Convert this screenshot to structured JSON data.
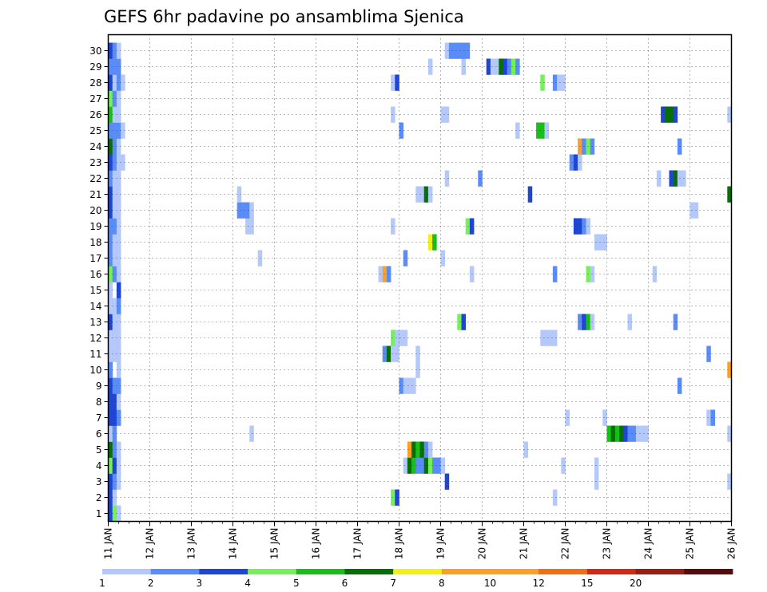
{
  "chart_data": {
    "type": "heatmap",
    "title": "GEFS 6hr padavine po ansamblima Sjenica",
    "x_labels": [
      "11 JAN",
      "12 JAN",
      "13 JAN",
      "14 JAN",
      "15 JAN",
      "16 JAN",
      "17 JAN",
      "18 JAN",
      "19 JAN",
      "20 JAN",
      "21 JAN",
      "22 JAN",
      "23 JAN",
      "24 JAN",
      "25 JAN",
      "26 JAN"
    ],
    "y_labels": [
      "1",
      "2",
      "3",
      "4",
      "5",
      "6",
      "7",
      "8",
      "9",
      "10",
      "11",
      "12",
      "13",
      "14",
      "15",
      "16",
      "17",
      "18",
      "19",
      "20",
      "21",
      "22",
      "23",
      "24",
      "25",
      "26",
      "27",
      "28",
      "29",
      "30"
    ],
    "x_range_days": [
      0,
      15
    ],
    "step_hours": 6,
    "grid": true,
    "legend_position": "bottom",
    "colorbar": {
      "labels": [
        "1",
        "2",
        "3",
        "4",
        "5",
        "6",
        "7",
        "8",
        "10",
        "12",
        "15",
        "20"
      ],
      "colors": [
        "#b4c8fa",
        "#5a8cf5",
        "#1e46d2",
        "#73f05a",
        "#19be19",
        "#086e08",
        "#f0f014",
        "#faa028",
        "#faa028",
        "#f06e14",
        "#d22814",
        "#961e14",
        "#5a0a0a"
      ]
    },
    "member_classes": {
      "1": [
        [
          0,
          3
        ],
        [
          1,
          4
        ],
        [
          2,
          1
        ]
      ],
      "2": [
        [
          0,
          3
        ],
        [
          1,
          1
        ],
        [
          68,
          4
        ],
        [
          69,
          3
        ],
        [
          107,
          1
        ]
      ],
      "3": [
        [
          0,
          3
        ],
        [
          1,
          2
        ],
        [
          2,
          1
        ],
        [
          81,
          3
        ],
        [
          117,
          1
        ],
        [
          149,
          1
        ]
      ],
      "4": [
        [
          0,
          4
        ],
        [
          1,
          3
        ],
        [
          2,
          1
        ],
        [
          71,
          1
        ],
        [
          72,
          6
        ],
        [
          73,
          5
        ],
        [
          74,
          2
        ],
        [
          75,
          2
        ],
        [
          76,
          6
        ],
        [
          77,
          4
        ],
        [
          78,
          2
        ],
        [
          79,
          2
        ],
        [
          80,
          1
        ],
        [
          109,
          1
        ],
        [
          117,
          1
        ]
      ],
      "5": [
        [
          0,
          6
        ],
        [
          1,
          2
        ],
        [
          2,
          1
        ],
        [
          72,
          8
        ],
        [
          73,
          6
        ],
        [
          74,
          5
        ],
        [
          75,
          6
        ],
        [
          76,
          2
        ],
        [
          77,
          1
        ],
        [
          100,
          1
        ]
      ],
      "6": [
        [
          0,
          1
        ],
        [
          1,
          2
        ],
        [
          34,
          1
        ],
        [
          120,
          5
        ],
        [
          121,
          6
        ],
        [
          122,
          5
        ],
        [
          123,
          6
        ],
        [
          124,
          3
        ],
        [
          125,
          2
        ],
        [
          126,
          2
        ],
        [
          127,
          1
        ],
        [
          128,
          1
        ],
        [
          129,
          1
        ],
        [
          149,
          1
        ]
      ],
      "7": [
        [
          0,
          3
        ],
        [
          1,
          3
        ],
        [
          2,
          2
        ],
        [
          110,
          1
        ],
        [
          119,
          1
        ],
        [
          144,
          1
        ],
        [
          145,
          2
        ]
      ],
      "8": [
        [
          0,
          3
        ],
        [
          1,
          3
        ],
        [
          2,
          1
        ]
      ],
      "9": [
        [
          0,
          3
        ],
        [
          1,
          2
        ],
        [
          2,
          2
        ],
        [
          70,
          2
        ],
        [
          71,
          1
        ],
        [
          72,
          1
        ],
        [
          73,
          1
        ],
        [
          137,
          2
        ]
      ],
      "10": [
        [
          0,
          2
        ],
        [
          2,
          1
        ],
        [
          74,
          1
        ],
        [
          149,
          8
        ]
      ],
      "11": [
        [
          0,
          1
        ],
        [
          1,
          1
        ],
        [
          2,
          1
        ],
        [
          66,
          2
        ],
        [
          67,
          6
        ],
        [
          68,
          1
        ],
        [
          69,
          1
        ],
        [
          74,
          1
        ],
        [
          144,
          2
        ]
      ],
      "12": [
        [
          0,
          1
        ],
        [
          1,
          1
        ],
        [
          2,
          1
        ],
        [
          68,
          4
        ],
        [
          69,
          1
        ],
        [
          70,
          1
        ],
        [
          71,
          1
        ],
        [
          104,
          1
        ],
        [
          105,
          1
        ],
        [
          106,
          1
        ],
        [
          107,
          1
        ]
      ],
      "13": [
        [
          0,
          3
        ],
        [
          1,
          1
        ],
        [
          2,
          1
        ],
        [
          84,
          4
        ],
        [
          85,
          3
        ],
        [
          113,
          2
        ],
        [
          114,
          3
        ],
        [
          115,
          5
        ],
        [
          116,
          1
        ],
        [
          125,
          1
        ],
        [
          136,
          2
        ]
      ],
      "14": [
        [
          0,
          1
        ],
        [
          1,
          1
        ],
        [
          2,
          2
        ]
      ],
      "15": [
        [
          0,
          1
        ],
        [
          2,
          3
        ]
      ],
      "16": [
        [
          0,
          4
        ],
        [
          1,
          2
        ],
        [
          2,
          1
        ],
        [
          65,
          1
        ],
        [
          66,
          8
        ],
        [
          67,
          2
        ],
        [
          87,
          1
        ],
        [
          107,
          2
        ],
        [
          115,
          4
        ],
        [
          116,
          1
        ],
        [
          131,
          1
        ]
      ],
      "17": [
        [
          0,
          2
        ],
        [
          1,
          1
        ],
        [
          2,
          1
        ],
        [
          36,
          1
        ],
        [
          71,
          2
        ],
        [
          80,
          1
        ]
      ],
      "18": [
        [
          0,
          2
        ],
        [
          1,
          1
        ],
        [
          2,
          1
        ],
        [
          77,
          7
        ],
        [
          78,
          5
        ],
        [
          117,
          1
        ],
        [
          118,
          1
        ],
        [
          119,
          1
        ]
      ],
      "19": [
        [
          0,
          2
        ],
        [
          1,
          2
        ],
        [
          2,
          1
        ],
        [
          33,
          1
        ],
        [
          34,
          1
        ],
        [
          68,
          1
        ],
        [
          86,
          4
        ],
        [
          87,
          3
        ],
        [
          112,
          3
        ],
        [
          113,
          3
        ],
        [
          114,
          2
        ],
        [
          115,
          1
        ]
      ],
      "20": [
        [
          0,
          3
        ],
        [
          1,
          1
        ],
        [
          2,
          1
        ],
        [
          31,
          2
        ],
        [
          32,
          2
        ],
        [
          33,
          2
        ],
        [
          34,
          1
        ],
        [
          140,
          1
        ],
        [
          141,
          1
        ]
      ],
      "21": [
        [
          0,
          3
        ],
        [
          1,
          1
        ],
        [
          2,
          1
        ],
        [
          31,
          1
        ],
        [
          74,
          1
        ],
        [
          75,
          1
        ],
        [
          76,
          6
        ],
        [
          77,
          1
        ],
        [
          101,
          3
        ],
        [
          149,
          6
        ]
      ],
      "22": [
        [
          0,
          2
        ],
        [
          1,
          1
        ],
        [
          2,
          1
        ],
        [
          81,
          1
        ],
        [
          89,
          2
        ],
        [
          132,
          1
        ],
        [
          135,
          3
        ],
        [
          136,
          6
        ],
        [
          137,
          1
        ],
        [
          138,
          1
        ]
      ],
      "23": [
        [
          0,
          3
        ],
        [
          1,
          2
        ],
        [
          2,
          1
        ],
        [
          3,
          1
        ],
        [
          111,
          2
        ],
        [
          112,
          3
        ],
        [
          113,
          1
        ]
      ],
      "24": [
        [
          0,
          6
        ],
        [
          1,
          2
        ],
        [
          2,
          1
        ],
        [
          113,
          8
        ],
        [
          114,
          2
        ],
        [
          115,
          4
        ],
        [
          116,
          2
        ],
        [
          137,
          2
        ]
      ],
      "25": [
        [
          0,
          2
        ],
        [
          1,
          2
        ],
        [
          2,
          2
        ],
        [
          3,
          1
        ],
        [
          70,
          2
        ],
        [
          98,
          1
        ],
        [
          103,
          5
        ],
        [
          104,
          5
        ],
        [
          105,
          1
        ]
      ],
      "26": [
        [
          0,
          5
        ],
        [
          1,
          1
        ],
        [
          2,
          1
        ],
        [
          68,
          1
        ],
        [
          80,
          1
        ],
        [
          81,
          1
        ],
        [
          133,
          3
        ],
        [
          134,
          6
        ],
        [
          135,
          6
        ],
        [
          136,
          3
        ],
        [
          149,
          1
        ]
      ],
      "27": [
        [
          0,
          4
        ],
        [
          1,
          2
        ],
        [
          2,
          1
        ]
      ],
      "28": [
        [
          0,
          3
        ],
        [
          1,
          1
        ],
        [
          2,
          2
        ],
        [
          3,
          1
        ],
        [
          68,
          1
        ],
        [
          69,
          3
        ],
        [
          104,
          4
        ],
        [
          107,
          2
        ],
        [
          108,
          1
        ],
        [
          109,
          1
        ]
      ],
      "29": [
        [
          0,
          2
        ],
        [
          1,
          2
        ],
        [
          2,
          2
        ],
        [
          77,
          1
        ],
        [
          85,
          1
        ],
        [
          91,
          3
        ],
        [
          92,
          1
        ],
        [
          93,
          1
        ],
        [
          94,
          6
        ],
        [
          95,
          3
        ],
        [
          96,
          2
        ],
        [
          97,
          4
        ],
        [
          98,
          2
        ]
      ],
      "30": [
        [
          0,
          3
        ],
        [
          1,
          2
        ],
        [
          2,
          1
        ],
        [
          81,
          1
        ],
        [
          82,
          2
        ],
        [
          83,
          2
        ],
        [
          84,
          2
        ],
        [
          85,
          2
        ],
        [
          86,
          2
        ]
      ]
    }
  }
}
